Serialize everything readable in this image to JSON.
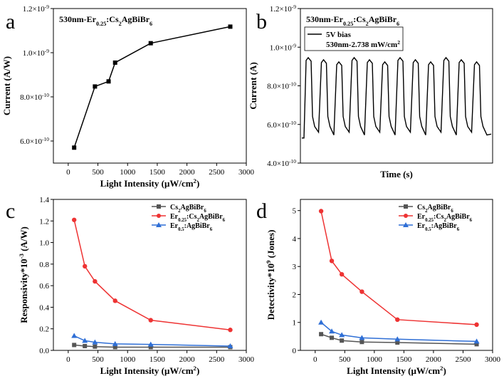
{
  "chart_data": [
    {
      "letter": "a",
      "type": "line",
      "annotation": {
        "main": "530nm-Er",
        "sub": "0.25",
        "mid": ":Cs",
        "sub2": "2",
        "tail": "AgBiBr",
        "sub3": "6"
      },
      "xlabel": "Light Intensity (μW/cm²)",
      "ylabel": "Current (A/W)",
      "xlim": [
        -250,
        3000
      ],
      "ylim": [
        5e-10,
        1.2e-09
      ],
      "xticks": [
        0,
        500,
        1000,
        1500,
        2000,
        2500,
        3000
      ],
      "yticks": [
        {
          "v": 6e-10,
          "m": "6.0",
          "e": "-10"
        },
        {
          "v": 8e-10,
          "m": "8.0",
          "e": "-10"
        },
        {
          "v": 1e-09,
          "m": "1.0",
          "e": "-9"
        },
        {
          "v": 1.2e-09,
          "m": "1.2",
          "e": "-9"
        }
      ],
      "color": "#000000",
      "series": [
        {
          "name": "530nm-Er0.25:Cs2AgBiBr6",
          "x": [
            100,
            450,
            680,
            790,
            1390,
            2730
          ],
          "y": [
            5.7e-10,
            8.47e-10,
            8.7e-10,
            9.55e-10,
            1.043e-09,
            1.118e-09
          ]
        }
      ]
    },
    {
      "letter": "b",
      "type": "line",
      "annotation": {
        "main": "530nm-Er",
        "sub": "0.25",
        "mid": ":Cs",
        "sub2": "2",
        "tail": "AgBiBr",
        "sub3": "6"
      },
      "legend": {
        "label1": "5V bias",
        "label2": "530nm-2.738 mW/cm²"
      },
      "xlabel": "Time (s)",
      "ylabel": "Current (A)",
      "ylim": [
        4e-10,
        1.2e-09
      ],
      "yticks": [
        {
          "v": 4e-10,
          "m": "4.0",
          "e": "-10"
        },
        {
          "v": 6e-10,
          "m": "6.0",
          "e": "-10"
        },
        {
          "v": 8e-10,
          "m": "8.0",
          "e": "-10"
        },
        {
          "v": 1e-09,
          "m": "1.0",
          "e": "-9"
        },
        {
          "v": 1.2e-09,
          "m": "1.2",
          "e": "-9"
        }
      ],
      "cycles": 12,
      "on_level": 9.35e-10,
      "off_level": 5.6e-10,
      "start_level": 5.3e-10,
      "end_level": 5.5e-10
    },
    {
      "letter": "c",
      "type": "line",
      "xlabel": "Light Intensity (μW/cm²)",
      "ylabel": "Responsivity*10⁻³ (A/W)",
      "xlim": [
        -250,
        3000
      ],
      "ylim": [
        0.0,
        1.4
      ],
      "xticks": [
        0,
        500,
        1000,
        1500,
        2000,
        2500,
        3000
      ],
      "yticks": [
        "0.0",
        "0.2",
        "0.4",
        "0.6",
        "0.8",
        "1.0",
        "1.2",
        "1.4"
      ],
      "x": [
        100,
        280,
        450,
        790,
        1390,
        2730
      ],
      "legend_position": "top-right",
      "series": [
        {
          "name": "Cs2AgBiBr6",
          "label": {
            "a": "Cs",
            "s1": "2",
            "b": "AgBiBr",
            "s2": "6"
          },
          "color": "#555555",
          "marker": "square",
          "values": [
            0.05,
            0.04,
            0.035,
            0.03,
            0.03,
            0.03
          ]
        },
        {
          "name": "Er0.25:Cs2AgBiBr6",
          "label": {
            "a": "Er",
            "s1": "0.25",
            "b": ":Cs",
            "s2": "2",
            "c": "AgBiBr",
            "s3": "6"
          },
          "color": "#ee3333",
          "marker": "circle",
          "values": [
            1.21,
            0.78,
            0.64,
            0.46,
            0.28,
            0.19
          ]
        },
        {
          "name": "Er0.5:AgBiBr6",
          "label": {
            "a": "Er",
            "s1": "0.5",
            "b": ":AgBiBr",
            "s2": "6"
          },
          "color": "#2f6fd6",
          "marker": "triangle",
          "values": [
            0.135,
            0.09,
            0.075,
            0.06,
            0.055,
            0.04
          ]
        }
      ]
    },
    {
      "letter": "d",
      "type": "line",
      "xlabel": "Light Intensity (μW/cm²)",
      "ylabel": "Detectivity*10⁹ (Jones)",
      "xlim": [
        -250,
        3000
      ],
      "ylim": [
        0,
        5.4
      ],
      "xticks": [
        0,
        500,
        1000,
        1500,
        2000,
        2500,
        3000
      ],
      "yticks": [
        "0",
        "1",
        "2",
        "3",
        "4",
        "5"
      ],
      "x": [
        100,
        280,
        450,
        790,
        1390,
        2730
      ],
      "legend_position": "top-right",
      "series": [
        {
          "name": "Cs2AgBiBr6",
          "label": {
            "a": "Cs",
            "s1": "2",
            "b": "AgBiBr",
            "s2": "6"
          },
          "color": "#555555",
          "marker": "square",
          "values": [
            0.58,
            0.45,
            0.35,
            0.3,
            0.28,
            0.22
          ]
        },
        {
          "name": "Er0.25:Cs2AgBiBr6",
          "label": {
            "a": "Er",
            "s1": "0.25",
            "b": ":Cs",
            "s2": "2",
            "c": "AgBiBr",
            "s3": "6"
          },
          "color": "#ee3333",
          "marker": "circle",
          "values": [
            4.98,
            3.2,
            2.72,
            2.1,
            1.1,
            0.92
          ]
        },
        {
          "name": "Er0.5:AgBiBr6",
          "label": {
            "a": "Er",
            "s1": "0.5",
            "b": ":AgBiBr",
            "s2": "6"
          },
          "color": "#2f6fd6",
          "marker": "triangle",
          "values": [
            1.0,
            0.68,
            0.55,
            0.45,
            0.4,
            0.32
          ]
        }
      ]
    }
  ]
}
